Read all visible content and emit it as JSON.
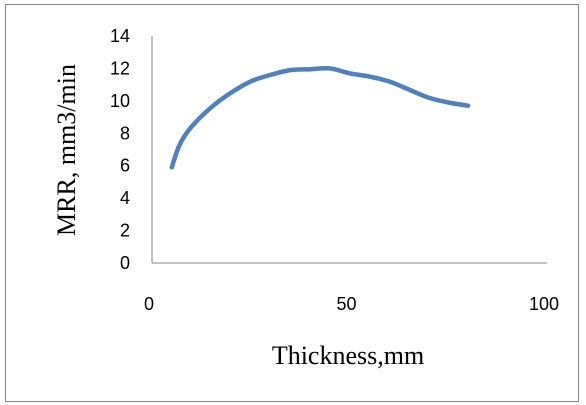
{
  "chart_data": {
    "type": "line",
    "xlabel": "Thickness,mm",
    "ylabel": "MRR, mm3/min",
    "xlim": [
      0,
      100
    ],
    "ylim": [
      0,
      14
    ],
    "x_ticks": [
      0,
      50,
      100
    ],
    "y_ticks": [
      0,
      2,
      4,
      6,
      8,
      10,
      12,
      14
    ],
    "grid": false,
    "legend": "none",
    "series": [
      {
        "color": "#4f81bd",
        "x": [
          5,
          7,
          10,
          15,
          20,
          25,
          30,
          35,
          40,
          45,
          50,
          55,
          60,
          65,
          70,
          75,
          80
        ],
        "y": [
          5.9,
          7.3,
          8.4,
          9.6,
          10.5,
          11.2,
          11.6,
          11.9,
          11.95,
          12.0,
          11.7,
          11.5,
          11.2,
          10.7,
          10.2,
          9.9,
          9.7
        ]
      }
    ]
  }
}
